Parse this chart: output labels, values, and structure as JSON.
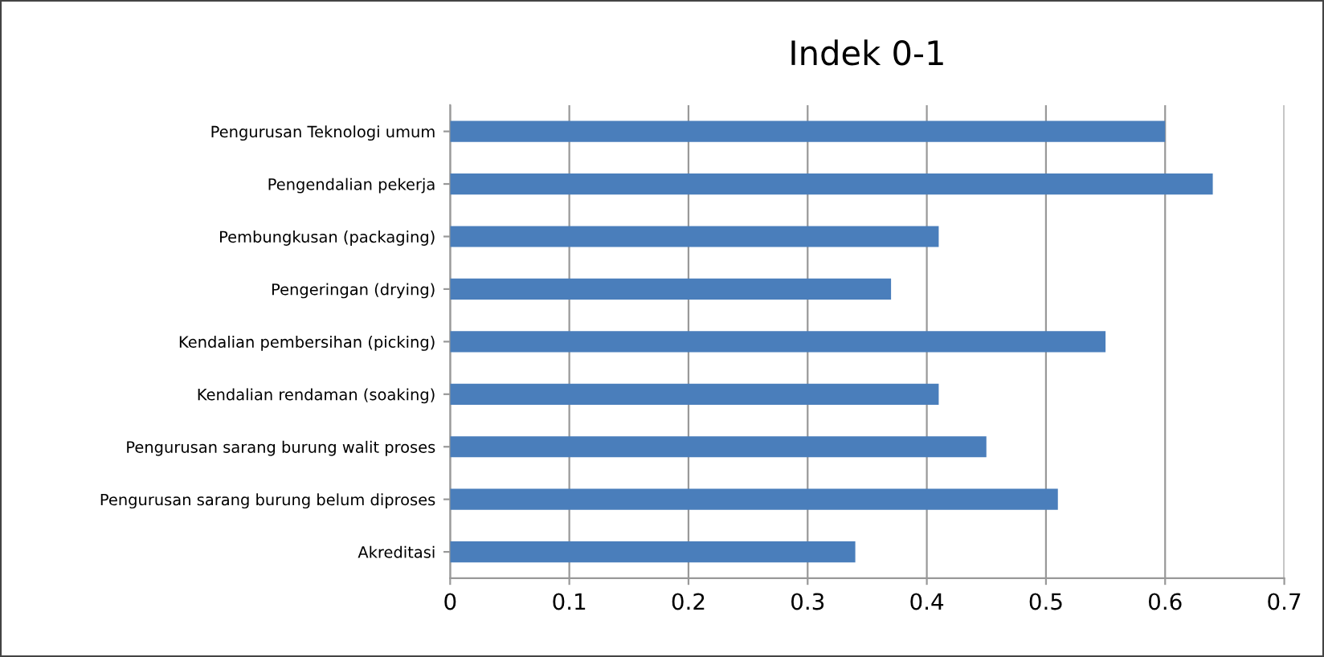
{
  "chart_data": {
    "type": "bar",
    "orientation": "horizontal",
    "title": "Indek 0-1",
    "categories": [
      "Pengurusan Teknologi umum",
      "Pengendalian pekerja",
      "Pembungkusan (packaging)",
      "Pengeringan (drying)",
      "Kendalian pembersihan (picking)",
      "Kendalian rendaman (soaking)",
      "Pengurusan sarang burung walit proses",
      "Pengurusan sarang burung belum diproses",
      "Akreditasi"
    ],
    "values": [
      0.6,
      0.64,
      0.41,
      0.37,
      0.55,
      0.41,
      0.45,
      0.51,
      0.34
    ],
    "color": "#4a7ebb",
    "xlim": [
      0,
      0.7
    ],
    "xticks": [
      0,
      0.1,
      0.2,
      0.3,
      0.4,
      0.5,
      0.6,
      0.7
    ],
    "grid": "x",
    "legend": false
  }
}
